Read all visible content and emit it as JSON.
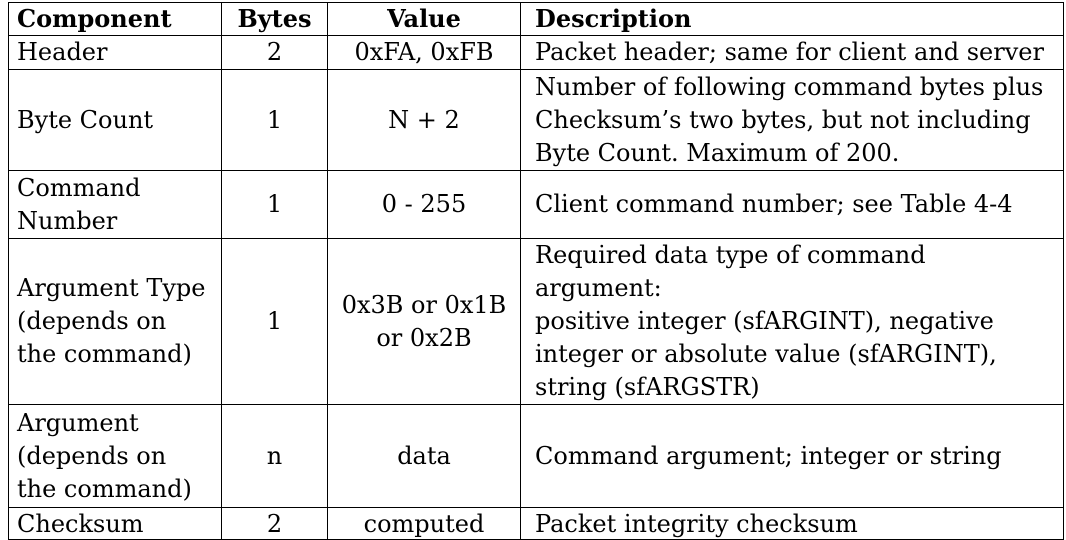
{
  "table": {
    "headers": {
      "component": "Component",
      "bytes": "Bytes",
      "value": "Value",
      "description": "Description"
    },
    "rows": [
      {
        "component": "Header",
        "bytes": "2",
        "value": "0xFA, 0xFB",
        "description": "Packet header; same for client and server"
      },
      {
        "component": "Byte Count",
        "bytes": "1",
        "value": "N + 2",
        "description": "Number of following command bytes plus\nChecksum’s two bytes, but not including\nByte Count. Maximum of 200."
      },
      {
        "component": "Command\nNumber",
        "bytes": "1",
        "value": "0 - 255",
        "description": "Client command number; see Table 4-4"
      },
      {
        "component": "Argument Type\n(depends on\nthe command)",
        "bytes": "1",
        "value": "0x3B or 0x1B\nor 0x2B",
        "description": "Required data type of command argument:\npositive integer (sfARGINT), negative\ninteger or absolute value (sfARGINT),\nstring (sfARGSTR)"
      },
      {
        "component": "Argument\n(depends on\nthe command)",
        "bytes": "n",
        "value": "data",
        "description": "Command argument; integer or string"
      },
      {
        "component": "Checksum",
        "bytes": "2",
        "value": "computed",
        "description": "Packet integrity checksum"
      }
    ]
  }
}
